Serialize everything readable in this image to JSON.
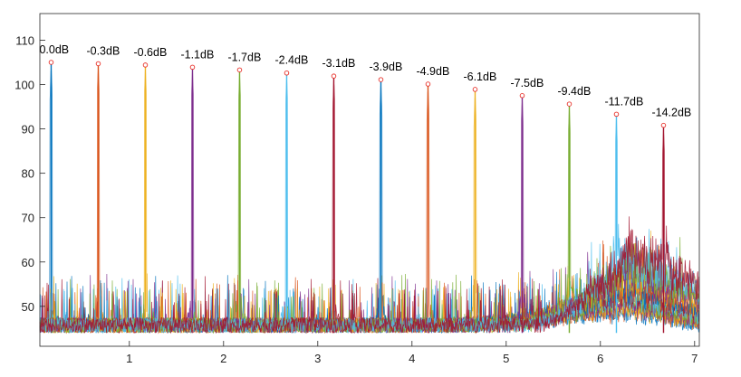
{
  "chart_data": {
    "type": "line",
    "title": "",
    "xlabel": "",
    "ylabel": "",
    "xlim": [
      0.05,
      7.05
    ],
    "ylim": [
      41,
      116
    ],
    "x_ticks": [
      1,
      2,
      3,
      4,
      5,
      6,
      7
    ],
    "y_ticks": [
      50,
      60,
      70,
      80,
      90,
      100,
      110
    ],
    "x_tick_labels": [
      "1",
      "2",
      "3",
      "4",
      "5",
      "6",
      "7"
    ],
    "y_tick_labels": [
      "50",
      "60",
      "70",
      "80",
      "90",
      "100",
      "110"
    ],
    "grid": false,
    "legend": "none",
    "noise_floor": 44,
    "peaks": [
      {
        "x": 0.17,
        "y": 105.0,
        "label": "0.0dB",
        "color": "#0072BD"
      },
      {
        "x": 0.67,
        "y": 104.7,
        "label": "-0.3dB",
        "color": "#D95319"
      },
      {
        "x": 1.17,
        "y": 104.4,
        "label": "-0.6dB",
        "color": "#EDB120"
      },
      {
        "x": 1.67,
        "y": 103.9,
        "label": "-1.1dB",
        "color": "#7E2F8E"
      },
      {
        "x": 2.17,
        "y": 103.3,
        "label": "-1.7dB",
        "color": "#77AC30"
      },
      {
        "x": 2.67,
        "y": 102.6,
        "label": "-2.4dB",
        "color": "#4DBEEE"
      },
      {
        "x": 3.17,
        "y": 101.9,
        "label": "-3.1dB",
        "color": "#A2142F"
      },
      {
        "x": 3.67,
        "y": 101.1,
        "label": "-3.9dB",
        "color": "#0072BD"
      },
      {
        "x": 4.17,
        "y": 100.1,
        "label": "-4.9dB",
        "color": "#D95319"
      },
      {
        "x": 4.67,
        "y": 98.9,
        "label": "-6.1dB",
        "color": "#EDB120"
      },
      {
        "x": 5.17,
        "y": 97.5,
        "label": "-7.5dB",
        "color": "#7E2F8E"
      },
      {
        "x": 5.67,
        "y": 95.6,
        "label": "-9.4dB",
        "color": "#77AC30"
      },
      {
        "x": 6.17,
        "y": 93.3,
        "label": "-11.7dB",
        "color": "#4DBEEE"
      },
      {
        "x": 6.67,
        "y": 90.8,
        "label": "-14.2dB",
        "color": "#A2142F"
      }
    ],
    "artifact_rolloff": {
      "onset_x": 4.0,
      "peak_x": 6.3,
      "peak_y": 67,
      "end_x": 7.0,
      "end_y": 57
    }
  }
}
